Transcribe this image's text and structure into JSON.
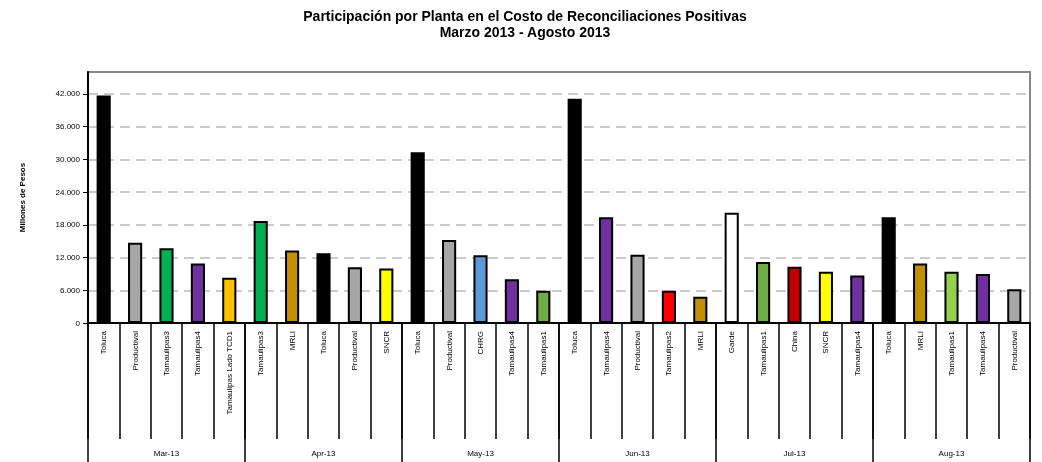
{
  "chart_data": {
    "type": "bar",
    "title": "Participación por Planta en el Costo de Reconciliaciones Positivas",
    "subtitle": "Marzo 2013 - Agosto 2013",
    "ylabel": "Millones de Pesos",
    "categories": [
      "Toluca",
      "Productival",
      "Tamaulipas3",
      "Tamaulipas4",
      "Tamaulipas Lado TCD1",
      "Tamaulipas3",
      "MRLI",
      "Toluca",
      "Productival",
      "SNCR",
      "Toluca",
      "Productival",
      "CHRG",
      "Tamaulipas4",
      "Tamaulipas1",
      "Toluca",
      "Tamaulipas4",
      "Productival",
      "Tamaulipas2",
      "MRLI",
      "Garde",
      "Tamaulipas1",
      "China",
      "SNCR",
      "Tamaulipas4",
      "Toluca",
      "MRLI",
      "Tamaulipas1",
      "Tamaulipas4",
      "Productival"
    ],
    "values": [
      41700,
      14700,
      13700,
      10900,
      8300,
      18700,
      13300,
      12800,
      10200,
      10000,
      31300,
      15200,
      12400,
      8000,
      5900,
      41100,
      19400,
      12500,
      5900,
      4800,
      20200,
      11200,
      10300,
      9400,
      8700,
      19400,
      10900,
      9400,
      9000,
      6200
    ],
    "colors": [
      "#000000",
      "#a6a6a6",
      "#00b050",
      "#7030a0",
      "#ffc000",
      "#00b050",
      "#c09000",
      "#000000",
      "#a6a6a6",
      "#ffff00",
      "#000000",
      "#a6a6a6",
      "#5b9bd5",
      "#7030a0",
      "#70ad47",
      "#000000",
      "#7030a0",
      "#a6a6a6",
      "#ff0000",
      "#c09000",
      "#ffffff",
      "#70ad47",
      "#c00000",
      "#ffff00",
      "#7030a0",
      "#000000",
      "#c09000",
      "#92d050",
      "#7030a0",
      "#a6a6a6"
    ],
    "annotations": [
      "Mar-13",
      "Apr-13",
      "May-13",
      "Jun-13",
      "Jul-13",
      "Aug-13"
    ],
    "ylim": [
      0,
      46000
    ],
    "yticks": [
      {
        "value": 0,
        "label": "0"
      },
      {
        "value": 6000,
        "label": "6.000"
      },
      {
        "value": 12000,
        "label": "12.000"
      },
      {
        "value": 18000,
        "label": "18.000"
      },
      {
        "value": 24000,
        "label": "24.000"
      },
      {
        "value": 30000,
        "label": "30.000"
      },
      {
        "value": 36000,
        "label": "36.000"
      },
      {
        "value": 42000,
        "label": "42.000"
      }
    ],
    "grid": "y"
  }
}
